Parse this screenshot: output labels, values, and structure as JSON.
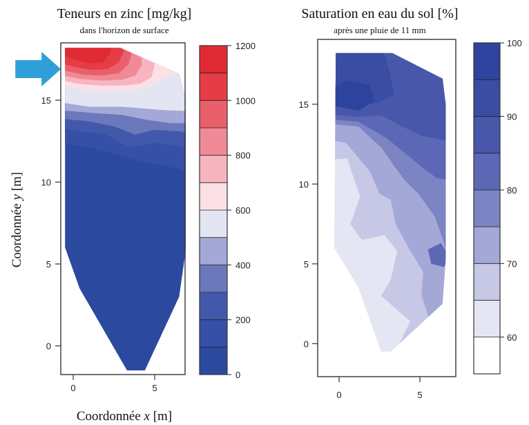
{
  "chart_data": [
    {
      "type": "heatmap",
      "title": "Teneurs en zinc [mg/kg]",
      "subtitle": "dans l'horizon de surface",
      "xlabel_prefix": "Coordonnée ",
      "xlabel_var": "x",
      "xlabel_unit": " [m]",
      "ylabel_prefix": "Coordonnée ",
      "ylabel_var": "y",
      "ylabel_unit": " [m]",
      "xlim": [
        -1,
        7
      ],
      "ylim": [
        -2,
        18.5
      ],
      "x_ticks": [
        0,
        5
      ],
      "x_tick_labels": [
        "0",
        "5"
      ],
      "y_ticks": [
        0,
        5,
        10,
        15
      ],
      "y_tick_labels": [
        "0",
        "5",
        "10",
        "15"
      ],
      "colorbar": {
        "range": [
          0,
          1200
        ],
        "ticks": [
          0,
          200,
          400,
          600,
          800,
          1000,
          1200
        ],
        "tick_labels": [
          "0",
          "200",
          "400",
          "600",
          "800",
          "1000",
          "1200"
        ],
        "levels": [
          0,
          100,
          200,
          300,
          400,
          500,
          600,
          700,
          800,
          900,
          1000,
          1100,
          1200
        ],
        "colors": [
          "#2c49a0",
          "#3550a6",
          "#4258ab",
          "#6b78bb",
          "#a3a8d6",
          "#e4e5f3",
          "#fbe1e6",
          "#f7b5c0",
          "#f08a96",
          "#e9606b",
          "#e53c46",
          "#e02b35"
        ]
      },
      "annotation": {
        "type": "arrow",
        "color": "#2f9fd8",
        "target": {
          "x": -0.5,
          "y": 16.9
        }
      }
    },
    {
      "type": "heatmap",
      "title": "Saturation en eau du sol [%]",
      "subtitle": "après une pluie de 11 mm",
      "xlim": [
        -1,
        7
      ],
      "ylim": [
        -2,
        19
      ],
      "x_ticks": [
        0,
        5
      ],
      "x_tick_labels": [
        "0",
        "5"
      ],
      "y_ticks": [
        0,
        5,
        10,
        15
      ],
      "y_tick_labels": [
        "0",
        "5",
        "10",
        "15"
      ],
      "colorbar": {
        "range": [
          55,
          100
        ],
        "ticks": [
          60,
          70,
          80,
          90,
          100
        ],
        "tick_labels": [
          "60",
          "70",
          "80",
          "90",
          "100"
        ],
        "levels": [
          55,
          60,
          65,
          70,
          75,
          80,
          85,
          90,
          95,
          100
        ],
        "colors": [
          "#ffffff",
          "#e5e6f4",
          "#c6c8e6",
          "#a4a8d7",
          "#7c84c3",
          "#5c68b5",
          "#4857aa",
          "#3a4da3",
          "#2d439d"
        ]
      }
    }
  ]
}
